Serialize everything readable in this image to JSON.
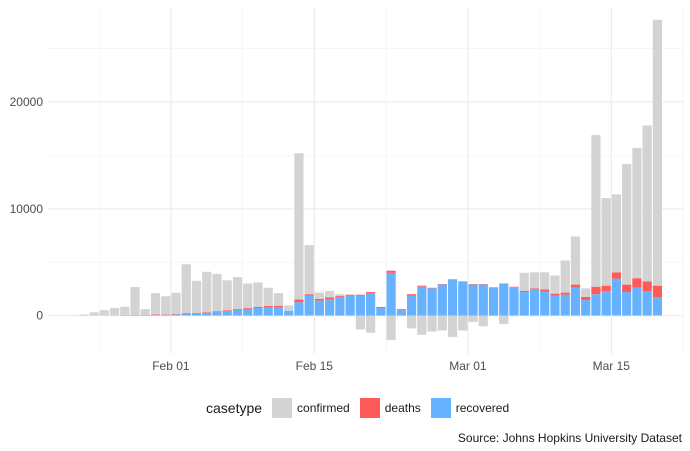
{
  "chart_data": {
    "type": "bar",
    "stacked": true,
    "x_axis": {
      "type": "date",
      "ticks": [
        "2020-02-01",
        "2020-02-15",
        "2020-03-01",
        "2020-03-15"
      ],
      "tick_labels": [
        "Feb 01",
        "Feb 15",
        "Mar 01",
        "Mar 15"
      ],
      "range": [
        "2020-01-20",
        "2020-03-22"
      ]
    },
    "y_axis": {
      "ticks": [
        0,
        10000,
        20000
      ],
      "tick_labels": [
        "0",
        "10000",
        "20000"
      ],
      "range": [
        -3600,
        28800
      ]
    },
    "grid": true,
    "legend_position": "bottom",
    "legend_title": "casetype",
    "series": [
      {
        "name": "confirmed",
        "color": "#d3d3d3"
      },
      {
        "name": "deaths",
        "color": "#ff5a5a"
      },
      {
        "name": "recovered",
        "color": "#66b2ff"
      }
    ],
    "rows": [
      {
        "date": "2020-01-22",
        "confirmed": 0,
        "deaths": 0,
        "recovered": 0
      },
      {
        "date": "2020-01-23",
        "confirmed": 100,
        "deaths": 0,
        "recovered": 0
      },
      {
        "date": "2020-01-24",
        "confirmed": 300,
        "deaths": 0,
        "recovered": 0
      },
      {
        "date": "2020-01-25",
        "confirmed": 500,
        "deaths": 0,
        "recovered": 0
      },
      {
        "date": "2020-01-26",
        "confirmed": 700,
        "deaths": 0,
        "recovered": 0
      },
      {
        "date": "2020-01-27",
        "confirmed": 780,
        "deaths": 30,
        "recovered": 10
      },
      {
        "date": "2020-01-28",
        "confirmed": 2600,
        "deaths": 50,
        "recovered": 20
      },
      {
        "date": "2020-01-29",
        "confirmed": 550,
        "deaths": 20,
        "recovered": 30
      },
      {
        "date": "2020-01-30",
        "confirmed": 2000,
        "deaths": 40,
        "recovered": 60
      },
      {
        "date": "2020-01-31",
        "confirmed": 1700,
        "deaths": 40,
        "recovered": 70
      },
      {
        "date": "2020-02-01",
        "confirmed": 2000,
        "deaths": 40,
        "recovered": 100
      },
      {
        "date": "2020-02-02",
        "confirmed": 4550,
        "deaths": 50,
        "recovered": 200
      },
      {
        "date": "2020-02-03",
        "confirmed": 3000,
        "deaths": 50,
        "recovered": 200
      },
      {
        "date": "2020-02-04",
        "confirmed": 3800,
        "deaths": 60,
        "recovered": 240
      },
      {
        "date": "2020-02-05",
        "confirmed": 3500,
        "deaths": 70,
        "recovered": 330
      },
      {
        "date": "2020-02-06",
        "confirmed": 2800,
        "deaths": 70,
        "recovered": 430
      },
      {
        "date": "2020-02-07",
        "confirmed": 3000,
        "deaths": 80,
        "recovered": 520
      },
      {
        "date": "2020-02-08",
        "confirmed": 2300,
        "deaths": 80,
        "recovered": 620
      },
      {
        "date": "2020-02-09",
        "confirmed": 2300,
        "deaths": 90,
        "recovered": 710
      },
      {
        "date": "2020-02-10",
        "confirmed": 1700,
        "deaths": 100,
        "recovered": 800
      },
      {
        "date": "2020-02-11",
        "confirmed": 1200,
        "deaths": 100,
        "recovered": 800
      },
      {
        "date": "2020-02-12",
        "confirmed": 500,
        "deaths": 0,
        "recovered": 450
      },
      {
        "date": "2020-02-13",
        "confirmed": 13700,
        "deaths": 250,
        "recovered": 1250
      },
      {
        "date": "2020-02-14",
        "confirmed": 4600,
        "deaths": 150,
        "recovered": 1850
      },
      {
        "date": "2020-02-15",
        "confirmed": 600,
        "deaths": 150,
        "recovered": 1400
      },
      {
        "date": "2020-02-16",
        "confirmed": 600,
        "deaths": 150,
        "recovered": 1550
      },
      {
        "date": "2020-02-17",
        "confirmed": 150,
        "deaths": 100,
        "recovered": 1750
      },
      {
        "date": "2020-02-18",
        "confirmed": 0,
        "deaths": 100,
        "recovered": 1850
      },
      {
        "date": "2020-02-19",
        "confirmed": -1300,
        "deaths": 100,
        "recovered": 1850
      },
      {
        "date": "2020-02-20",
        "confirmed": -1600,
        "deaths": 100,
        "recovered": 2100
      },
      {
        "date": "2020-02-21",
        "confirmed": 0,
        "deaths": 100,
        "recovered": 700
      },
      {
        "date": "2020-02-22",
        "confirmed": -2300,
        "deaths": 200,
        "recovered": 4000
      },
      {
        "date": "2020-02-23",
        "confirmed": 0,
        "deaths": 100,
        "recovered": 500
      },
      {
        "date": "2020-02-24",
        "confirmed": -1200,
        "deaths": 150,
        "recovered": 1850
      },
      {
        "date": "2020-02-25",
        "confirmed": -1800,
        "deaths": 100,
        "recovered": 2700
      },
      {
        "date": "2020-02-26",
        "confirmed": -1500,
        "deaths": 50,
        "recovered": 2550
      },
      {
        "date": "2020-02-27",
        "confirmed": -1400,
        "deaths": 50,
        "recovered": 2900
      },
      {
        "date": "2020-02-28",
        "confirmed": -2000,
        "deaths": 50,
        "recovered": 3350
      },
      {
        "date": "2020-02-29",
        "confirmed": -1400,
        "deaths": 50,
        "recovered": 3150
      },
      {
        "date": "2020-03-01",
        "confirmed": -600,
        "deaths": 50,
        "recovered": 2900
      },
      {
        "date": "2020-03-02",
        "confirmed": -1000,
        "deaths": 50,
        "recovered": 2900
      },
      {
        "date": "2020-03-03",
        "confirmed": 0,
        "deaths": 50,
        "recovered": 2600
      },
      {
        "date": "2020-03-04",
        "confirmed": -800,
        "deaths": 50,
        "recovered": 2950
      },
      {
        "date": "2020-03-05",
        "confirmed": 0,
        "deaths": 50,
        "recovered": 2650
      },
      {
        "date": "2020-03-06",
        "confirmed": 1700,
        "deaths": 100,
        "recovered": 2200
      },
      {
        "date": "2020-03-07",
        "confirmed": 1500,
        "deaths": 100,
        "recovered": 2450
      },
      {
        "date": "2020-03-08",
        "confirmed": 1600,
        "deaths": 200,
        "recovered": 2250
      },
      {
        "date": "2020-03-09",
        "confirmed": 1700,
        "deaths": 200,
        "recovered": 1850
      },
      {
        "date": "2020-03-10",
        "confirmed": 3000,
        "deaths": 200,
        "recovered": 1950
      },
      {
        "date": "2020-03-11",
        "confirmed": 4500,
        "deaths": 300,
        "recovered": 2600
      },
      {
        "date": "2020-03-12",
        "confirmed": 800,
        "deaths": 300,
        "recovered": 1450
      },
      {
        "date": "2020-03-13",
        "confirmed": 14200,
        "deaths": 700,
        "recovered": 2000
      },
      {
        "date": "2020-03-14",
        "confirmed": 8200,
        "deaths": 500,
        "recovered": 2300
      },
      {
        "date": "2020-03-15",
        "confirmed": 7300,
        "deaths": 600,
        "recovered": 3450
      },
      {
        "date": "2020-03-16",
        "confirmed": 11300,
        "deaths": 700,
        "recovered": 2200
      },
      {
        "date": "2020-03-17",
        "confirmed": 12200,
        "deaths": 900,
        "recovered": 2600
      },
      {
        "date": "2020-03-18",
        "confirmed": 14600,
        "deaths": 900,
        "recovered": 2300
      },
      {
        "date": "2020-03-19",
        "confirmed": 24900,
        "deaths": 1100,
        "recovered": 1700
      }
    ]
  },
  "legend": {
    "title": "casetype",
    "items": [
      {
        "label": "confirmed",
        "color": "#d3d3d3"
      },
      {
        "label": "deaths",
        "color": "#ff5a5a"
      },
      {
        "label": "recovered",
        "color": "#66b2ff"
      }
    ]
  },
  "caption": "Source: Johns Hopkins University Dataset"
}
